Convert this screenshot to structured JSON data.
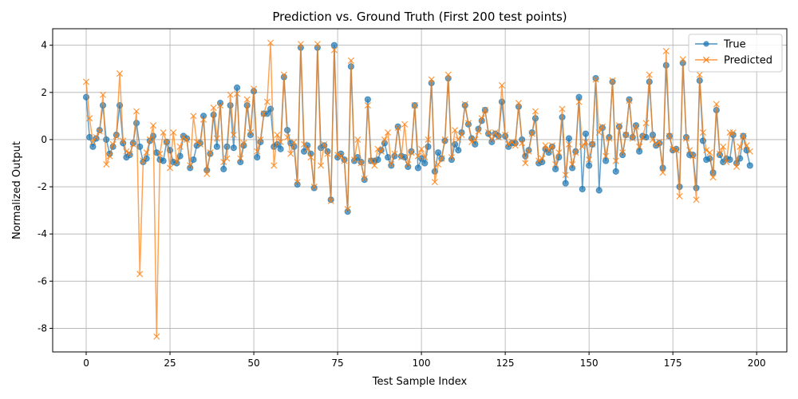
{
  "chart_data": {
    "type": "line",
    "title": "Prediction vs. Ground Truth (First 200 test points)",
    "xlabel": "Test Sample Index",
    "ylabel": "Normalized Output",
    "xlim": [
      -10,
      209
    ],
    "ylim": [
      -9,
      4.7
    ],
    "xticks": [
      0,
      25,
      50,
      75,
      100,
      125,
      150,
      175,
      200
    ],
    "yticks": [
      -8,
      -6,
      -4,
      -2,
      0,
      2,
      4
    ],
    "grid": true,
    "legend_position": "top-right",
    "series": [
      {
        "name": "True",
        "color": "#1f77b4",
        "marker": "circle",
        "values": [
          1.8,
          0.1,
          -0.3,
          0.05,
          0.4,
          1.45,
          0.0,
          -0.6,
          -0.3,
          0.2,
          1.45,
          -0.15,
          -0.75,
          -0.65,
          -0.15,
          0.7,
          -0.3,
          -0.95,
          -0.8,
          -0.05,
          0.15,
          -0.55,
          -0.85,
          -0.9,
          -0.1,
          -0.45,
          -0.95,
          -1.0,
          -0.7,
          0.15,
          0.05,
          -1.2,
          -0.85,
          -0.25,
          -0.15,
          1.0,
          -1.3,
          -0.6,
          1.05,
          -0.3,
          1.55,
          -1.25,
          -0.3,
          1.45,
          -0.35,
          2.2,
          -0.95,
          -0.25,
          1.45,
          0.2,
          2.05,
          -0.75,
          -0.1,
          1.1,
          1.1,
          1.3,
          -0.3,
          -0.2,
          -0.4,
          2.65,
          0.4,
          -0.15,
          -0.3,
          -1.9,
          3.9,
          -0.5,
          -0.25,
          -0.6,
          -2.05,
          3.9,
          -0.35,
          -0.25,
          -0.5,
          -2.55,
          4.0,
          -0.75,
          -0.6,
          -0.85,
          -3.05,
          3.1,
          -0.9,
          -0.75,
          -0.95,
          -1.7,
          1.7,
          -0.9,
          -0.9,
          -0.85,
          -0.45,
          -0.15,
          -0.75,
          -1.1,
          -0.7,
          0.55,
          -0.7,
          -0.75,
          -1.15,
          -0.5,
          1.45,
          -1.2,
          -0.8,
          -1.0,
          -0.3,
          2.4,
          -1.35,
          -0.55,
          -0.8,
          -0.05,
          2.6,
          -0.85,
          -0.2,
          -0.45,
          0.3,
          1.45,
          0.65,
          0.05,
          -0.2,
          0.45,
          0.8,
          1.25,
          0.25,
          -0.1,
          0.25,
          0.15,
          1.6,
          0.15,
          -0.3,
          -0.15,
          -0.15,
          1.4,
          0.0,
          -0.7,
          -0.45,
          0.3,
          0.9,
          -1.0,
          -0.95,
          -0.4,
          -0.55,
          -0.3,
          -1.25,
          -0.75,
          0.95,
          -1.85,
          0.05,
          -1.2,
          -0.5,
          1.8,
          -2.1,
          0.25,
          -1.1,
          -0.2,
          2.6,
          -2.15,
          0.5,
          -0.9,
          0.1,
          2.45,
          -1.35,
          0.55,
          -0.65,
          0.2,
          1.7,
          0.1,
          0.6,
          -0.5,
          0.15,
          0.1,
          2.45,
          0.2,
          -0.25,
          -0.15,
          -1.2,
          3.15,
          0.15,
          -0.45,
          -0.4,
          -2.0,
          3.25,
          0.1,
          -0.65,
          -0.65,
          -2.05,
          2.5,
          -0.05,
          -0.85,
          -0.8,
          -1.4,
          1.25,
          -0.65,
          -0.95,
          -0.8,
          -0.85,
          0.2,
          -1.0,
          -0.8,
          0.15,
          -0.45,
          -1.1
        ]
      },
      {
        "name": "Predicted",
        "color": "#ff7f0e",
        "marker": "x",
        "values": [
          2.45,
          0.9,
          -0.1,
          0.1,
          0.35,
          1.9,
          -1.05,
          -0.7,
          -0.2,
          0.15,
          2.8,
          -0.05,
          -0.5,
          -0.6,
          -0.2,
          1.2,
          -5.7,
          -0.9,
          -0.55,
          0.0,
          0.6,
          -8.35,
          -0.6,
          0.3,
          -0.1,
          -1.2,
          0.3,
          -0.95,
          -0.3,
          0.1,
          0.0,
          -1.1,
          1.0,
          -0.1,
          -0.2,
          0.85,
          -1.45,
          -0.55,
          1.35,
          0.05,
          1.45,
          -0.95,
          -0.8,
          1.9,
          0.2,
          1.95,
          -0.8,
          -0.15,
          1.7,
          0.3,
          2.15,
          -0.5,
          0.0,
          1.1,
          1.6,
          4.1,
          -1.1,
          0.2,
          -0.1,
          2.75,
          0.1,
          -0.6,
          -0.1,
          -1.8,
          4.05,
          -0.2,
          -0.4,
          -0.75,
          -2.0,
          4.05,
          -1.1,
          -0.2,
          -0.6,
          -2.6,
          3.8,
          -0.65,
          -0.7,
          -0.9,
          -2.95,
          3.35,
          -0.85,
          0.0,
          -1.0,
          -1.65,
          1.45,
          -0.9,
          -1.1,
          -0.4,
          -0.5,
          0.0,
          0.3,
          -1.05,
          -0.6,
          0.5,
          -0.75,
          0.65,
          -1.05,
          -0.55,
          1.45,
          -0.7,
          -0.4,
          -0.75,
          0.0,
          2.55,
          -1.8,
          -1.05,
          -0.8,
          0.0,
          2.75,
          -0.75,
          0.4,
          0.0,
          0.2,
          1.5,
          0.7,
          -0.1,
          0.0,
          0.35,
          0.9,
          1.25,
          0.3,
          0.0,
          0.3,
          0.1,
          2.3,
          0.2,
          -0.2,
          -0.1,
          -0.25,
          1.55,
          -0.15,
          -1.0,
          -0.5,
          0.25,
          1.2,
          -0.9,
          -0.8,
          -0.25,
          -0.45,
          -0.25,
          -1.05,
          -0.55,
          1.3,
          -1.5,
          -0.2,
          -1.05,
          -0.55,
          1.6,
          -0.3,
          -0.1,
          -0.85,
          -0.2,
          2.55,
          0.3,
          0.55,
          -0.7,
          0.05,
          2.5,
          -0.9,
          0.6,
          -0.55,
          0.2,
          1.65,
          0.05,
          0.55,
          -0.3,
          0.1,
          0.7,
          2.75,
          0.0,
          -0.2,
          -0.1,
          -1.4,
          3.75,
          0.15,
          -0.4,
          -0.45,
          -2.4,
          3.4,
          0.05,
          -0.45,
          -0.7,
          -2.55,
          2.75,
          0.3,
          -0.45,
          -0.55,
          -1.6,
          1.5,
          -0.6,
          -0.3,
          -0.95,
          0.3,
          0.3,
          -1.15,
          -0.3,
          0.15,
          -0.25,
          -0.5
        ]
      }
    ]
  }
}
